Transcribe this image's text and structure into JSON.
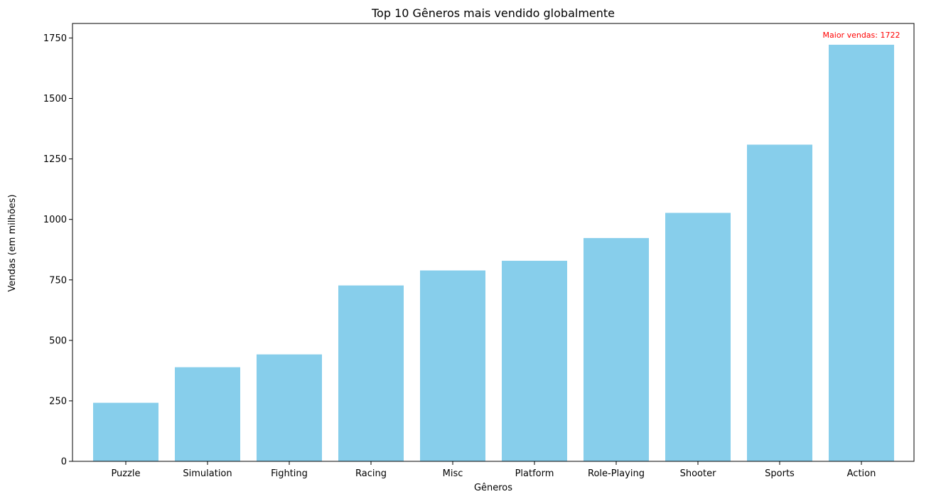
{
  "chart_data": {
    "type": "bar",
    "title": "Top 10 Gêneros mais vendido globalmente",
    "xlabel": "Gêneros",
    "ylabel": "Vendas (em milhões)",
    "categories": [
      "Puzzle",
      "Simulation",
      "Fighting",
      "Racing",
      "Misc",
      "Platform",
      "Role-Playing",
      "Shooter",
      "Sports",
      "Action"
    ],
    "values": [
      242,
      389,
      442,
      727,
      789,
      829,
      923,
      1027,
      1309,
      1722
    ],
    "ylim": [
      0,
      1810
    ],
    "yticks": [
      "0",
      "250",
      "500",
      "750",
      "1000",
      "1250",
      "1500",
      "1750"
    ],
    "grid": false,
    "bar_color": "#87CEEB",
    "annotation": {
      "text": "Maior vendas: 1722",
      "category": "Action",
      "value": 1722,
      "color": "#ff0000"
    }
  }
}
